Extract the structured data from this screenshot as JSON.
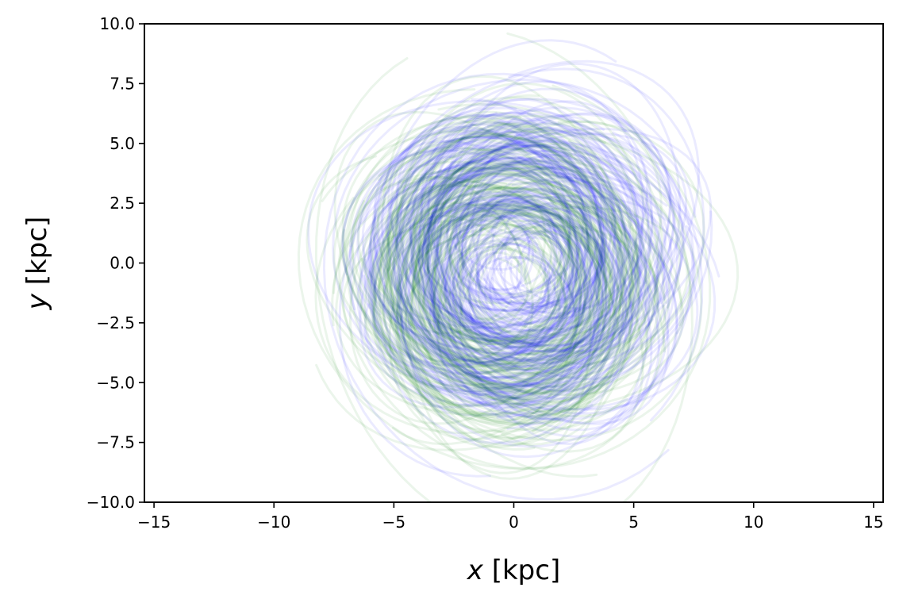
{
  "chart_data": {
    "type": "line",
    "xlabel_var": "x",
    "xlabel_unit": " [kpc]",
    "ylabel_var": "y",
    "ylabel_unit": " [kpc]",
    "xlim": [
      -15.4,
      15.4
    ],
    "ylim": [
      -10,
      10
    ],
    "x_ticks": [
      -15,
      -10,
      -5,
      0,
      5,
      10,
      15
    ],
    "x_tick_labels": [
      "−15",
      "−10",
      "−5",
      "0",
      "5",
      "10",
      "15"
    ],
    "y_ticks": [
      -10,
      -7.5,
      -5,
      -2.5,
      0,
      2.5,
      5,
      7.5,
      10
    ],
    "y_tick_labels": [
      "−10.0",
      "−7.5",
      "−5.0",
      "−2.5",
      "0.0",
      "2.5",
      "5.0",
      "7.5",
      "10.0"
    ],
    "grid": false,
    "legend": "none",
    "series": [
      {
        "color": "#0000ff",
        "opacity": 0.08,
        "orbit_count": 190,
        "radius_range_kpc": [
          1.5,
          9.5
        ],
        "core_radius_kpc": 4.0,
        "center_kpc": [
          0.2,
          0.0
        ]
      },
      {
        "color": "#008000",
        "opacity": 0.08,
        "orbit_count": 150,
        "radius_range_kpc": [
          1.5,
          9.0
        ],
        "core_radius_kpc": 4.2,
        "center_kpc": [
          -0.4,
          -0.8
        ]
      }
    ]
  }
}
